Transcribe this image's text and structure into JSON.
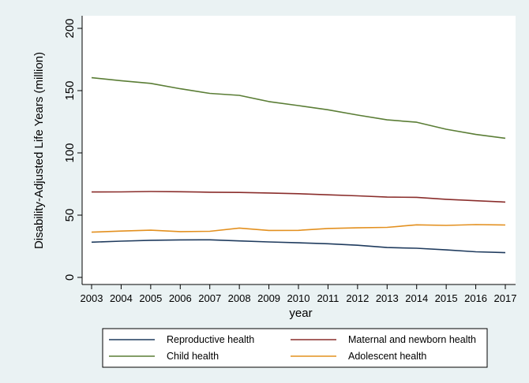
{
  "chart_data": {
    "type": "line",
    "title": "",
    "xlabel": "year",
    "ylabel": "Disability-Adjusted Life Years (million)",
    "x": [
      2003,
      2004,
      2005,
      2006,
      2007,
      2008,
      2009,
      2010,
      2011,
      2012,
      2013,
      2014,
      2015,
      2016,
      2017
    ],
    "xlim": [
      2003,
      2017
    ],
    "ylim": [
      0,
      200
    ],
    "yticks": [
      0,
      50,
      100,
      150,
      200
    ],
    "grid": false,
    "legend_position": "bottom",
    "series": [
      {
        "name": "Reproductive health",
        "color": "#1f3b5e",
        "values": [
          28.3,
          29.1,
          29.8,
          30.1,
          30.2,
          29.3,
          28.5,
          27.8,
          27.0,
          25.8,
          24.0,
          23.4,
          22.1,
          20.6,
          19.9
        ]
      },
      {
        "name": "Maternal and newborn health",
        "color": "#8a2d2b",
        "values": [
          68.6,
          68.7,
          69.0,
          68.8,
          68.4,
          68.2,
          67.8,
          67.2,
          66.3,
          65.5,
          64.5,
          64.3,
          62.7,
          61.6,
          60.5
        ]
      },
      {
        "name": "Child health",
        "color": "#5a7d35",
        "values": [
          160.4,
          158.0,
          155.8,
          151.5,
          147.8,
          146.2,
          141.2,
          138.0,
          134.6,
          130.4,
          126.5,
          124.6,
          119.0,
          114.8,
          111.8
        ]
      },
      {
        "name": "Adolescent health",
        "color": "#e3901f",
        "values": [
          36.3,
          37.2,
          37.9,
          36.8,
          37.0,
          39.6,
          37.7,
          37.8,
          39.3,
          39.8,
          40.2,
          42.2,
          41.8,
          42.4,
          42.1
        ]
      }
    ]
  }
}
